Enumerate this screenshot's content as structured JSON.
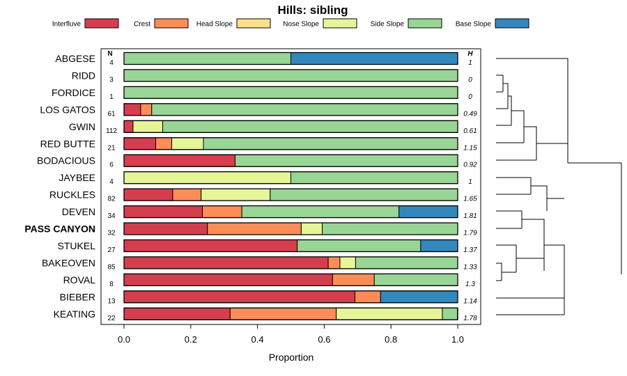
{
  "chart_data": {
    "type": "bar",
    "orientation": "horizontal-stacked",
    "title": "Hills: sibling",
    "xlabel": "Proportion",
    "ylabel": "",
    "xlim": [
      0,
      1
    ],
    "xticks": [
      0.0,
      0.2,
      0.4,
      0.6,
      0.8,
      1.0
    ],
    "xtick_labels": [
      "0.0",
      "0.2",
      "0.4",
      "0.6",
      "0.8",
      "1.0"
    ],
    "n_header": "N",
    "h_header": "H",
    "legend": [
      {
        "name": "Interfluve",
        "color": "#d53e4f"
      },
      {
        "name": "Crest",
        "color": "#fc8d59"
      },
      {
        "name": "Head Slope",
        "color": "#fee08b"
      },
      {
        "name": "Nose Slope",
        "color": "#e6f598"
      },
      {
        "name": "Side Slope",
        "color": "#99d594"
      },
      {
        "name": "Base Slope",
        "color": "#3288bd"
      }
    ],
    "rows": [
      {
        "label": "ABGESE",
        "n": "4",
        "h": "1",
        "bold": false,
        "values": [
          0,
          0,
          0,
          0,
          0.5,
          0.5
        ]
      },
      {
        "label": "RIDD",
        "n": "3",
        "h": "0",
        "bold": false,
        "values": [
          0,
          0,
          0,
          0,
          1.0,
          0
        ]
      },
      {
        "label": "FORDICE",
        "n": "1",
        "h": "0",
        "bold": false,
        "values": [
          0,
          0,
          0,
          0,
          1.0,
          0
        ]
      },
      {
        "label": "LOS GATOS",
        "n": "61",
        "h": "0.49",
        "bold": false,
        "values": [
          0.05,
          0.033,
          0,
          0,
          0.917,
          0
        ]
      },
      {
        "label": "GWIN",
        "n": "112",
        "h": "0.61",
        "bold": false,
        "values": [
          0.027,
          0,
          0,
          0.089,
          0.884,
          0
        ]
      },
      {
        "label": "RED BUTTE",
        "n": "21",
        "h": "1.15",
        "bold": false,
        "values": [
          0.095,
          0.048,
          0,
          0.095,
          0.762,
          0
        ]
      },
      {
        "label": "BODACIOUS",
        "n": "6",
        "h": "0.92",
        "bold": false,
        "values": [
          0.333,
          0,
          0,
          0,
          0.667,
          0
        ]
      },
      {
        "label": "JAYBEE",
        "n": "4",
        "h": "1",
        "bold": false,
        "values": [
          0,
          0,
          0,
          0.5,
          0.5,
          0
        ]
      },
      {
        "label": "RUCKLES",
        "n": "82",
        "h": "1.65",
        "bold": false,
        "values": [
          0.146,
          0.085,
          0,
          0.207,
          0.562,
          0
        ]
      },
      {
        "label": "DEVEN",
        "n": "34",
        "h": "1.81",
        "bold": false,
        "values": [
          0.235,
          0.118,
          0,
          0,
          0.471,
          0.176
        ]
      },
      {
        "label": "PASS CANYON",
        "n": "32",
        "h": "1.79",
        "bold": true,
        "values": [
          0.25,
          0.281,
          0,
          0.063,
          0.406,
          0
        ]
      },
      {
        "label": "STUKEL",
        "n": "27",
        "h": "1.37",
        "bold": false,
        "values": [
          0.519,
          0,
          0,
          0,
          0.37,
          0.111
        ]
      },
      {
        "label": "BAKEOVEN",
        "n": "85",
        "h": "1.33",
        "bold": false,
        "values": [
          0.612,
          0.035,
          0,
          0.047,
          0.306,
          0
        ]
      },
      {
        "label": "ROVAL",
        "n": "8",
        "h": "1.3",
        "bold": false,
        "values": [
          0.625,
          0.125,
          0,
          0,
          0.25,
          0
        ]
      },
      {
        "label": "BIEBER",
        "n": "13",
        "h": "1.14",
        "bold": false,
        "values": [
          0.692,
          0.077,
          0,
          0,
          0,
          0.231
        ]
      },
      {
        "label": "KEATING",
        "n": "22",
        "h": "1.78",
        "bold": false,
        "values": [
          0.318,
          0.318,
          0,
          0.318,
          0.045,
          0
        ]
      }
    ]
  }
}
